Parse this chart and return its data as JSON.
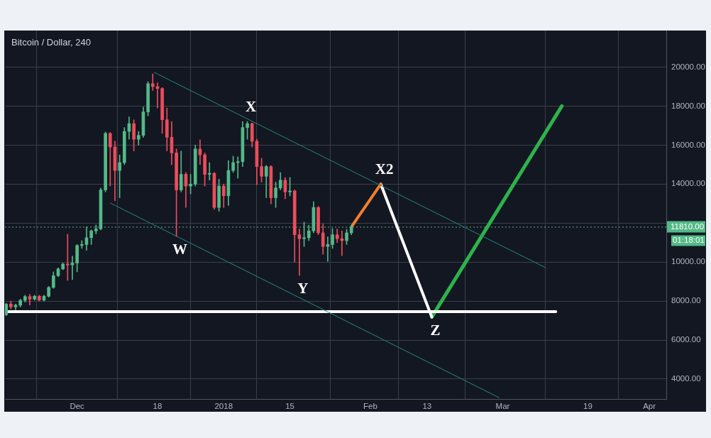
{
  "chart_data": {
    "type": "candlestick",
    "title": "Bitcoin / Dollar, 240",
    "x": [
      "2017-11-16",
      "2017-11-17",
      "2017-11-18",
      "2017-11-19",
      "2017-11-20",
      "2017-11-21",
      "2017-11-22",
      "2017-11-23",
      "2017-11-24",
      "2017-11-25",
      "2017-11-26",
      "2017-11-27",
      "2017-11-28",
      "2017-11-29",
      "2017-11-30",
      "2017-12-01",
      "2017-12-02",
      "2017-12-03",
      "2017-12-04",
      "2017-12-05",
      "2017-12-06",
      "2017-12-07",
      "2017-12-08",
      "2017-12-09",
      "2017-12-10",
      "2017-12-11",
      "2017-12-12",
      "2017-12-13",
      "2017-12-14",
      "2017-12-15",
      "2017-12-16",
      "2017-12-17",
      "2017-12-18",
      "2017-12-19",
      "2017-12-20",
      "2017-12-21",
      "2017-12-22",
      "2017-12-23",
      "2017-12-24",
      "2017-12-25",
      "2017-12-26",
      "2017-12-27",
      "2017-12-28",
      "2017-12-29",
      "2017-12-30",
      "2017-12-31",
      "2018-01-01",
      "2018-01-02",
      "2018-01-03",
      "2018-01-04",
      "2018-01-05",
      "2018-01-06",
      "2018-01-07",
      "2018-01-08",
      "2018-01-09",
      "2018-01-10",
      "2018-01-11",
      "2018-01-12",
      "2018-01-13",
      "2018-01-14",
      "2018-01-15",
      "2018-01-16",
      "2018-01-17",
      "2018-01-18",
      "2018-01-19",
      "2018-01-20",
      "2018-01-21",
      "2018-01-22",
      "2018-01-23",
      "2018-01-24",
      "2018-01-25",
      "2018-01-26",
      "2018-01-27",
      "2018-01-28"
    ],
    "ohlc": [
      [
        7300,
        7880,
        7250,
        7850
      ],
      [
        7850,
        8000,
        7600,
        7700
      ],
      [
        7700,
        7850,
        7550,
        7790
      ],
      [
        7790,
        8100,
        7700,
        8040
      ],
      [
        8040,
        8300,
        7950,
        8230
      ],
      [
        8230,
        8350,
        7800,
        8100
      ],
      [
        8100,
        8300,
        8050,
        8250
      ],
      [
        8250,
        8300,
        8000,
        8050
      ],
      [
        8050,
        8300,
        8000,
        8250
      ],
      [
        8250,
        8750,
        8200,
        8700
      ],
      [
        8700,
        9500,
        8650,
        9300
      ],
      [
        9300,
        9700,
        9250,
        9650
      ],
      [
        9650,
        9950,
        9600,
        9900
      ],
      [
        9900,
        11430,
        9060,
        9850
      ],
      [
        9850,
        10300,
        9100,
        9950
      ],
      [
        9950,
        10900,
        9500,
        10850
      ],
      [
        10850,
        11100,
        10700,
        10900
      ],
      [
        10900,
        11800,
        10600,
        11250
      ],
      [
        11250,
        11650,
        10900,
        11600
      ],
      [
        11600,
        11900,
        11450,
        11700
      ],
      [
        11700,
        13800,
        11650,
        13700
      ],
      [
        13700,
        16670,
        13600,
        16600
      ],
      [
        16600,
        16650,
        13900,
        15900
      ],
      [
        15900,
        16200,
        13140,
        14700
      ],
      [
        14700,
        15500,
        13300,
        15100
      ],
      [
        15100,
        16900,
        15000,
        16700
      ],
      [
        16700,
        17450,
        16300,
        17100
      ],
      [
        17100,
        17300,
        15700,
        16300
      ],
      [
        16300,
        16700,
        16000,
        16500
      ],
      [
        16500,
        17950,
        16400,
        17700
      ],
      [
        17700,
        19250,
        17500,
        19150
      ],
      [
        19150,
        19650,
        18800,
        19000
      ],
      [
        19000,
        19200,
        17900,
        18900
      ],
      [
        18900,
        18950,
        16600,
        17300
      ],
      [
        17300,
        17900,
        15700,
        16400
      ],
      [
        16400,
        17200,
        15000,
        15600
      ],
      [
        15600,
        15800,
        11320,
        13700
      ],
      [
        13700,
        15690,
        13600,
        14500
      ],
      [
        14500,
        14600,
        12800,
        13900
      ],
      [
        13900,
        14500,
        13500,
        14000
      ],
      [
        14000,
        16000,
        13900,
        15800
      ],
      [
        15800,
        16270,
        15000,
        15500
      ],
      [
        15500,
        15600,
        13900,
        14500
      ],
      [
        14500,
        15100,
        14200,
        14550
      ],
      [
        14550,
        14600,
        12700,
        12800
      ],
      [
        12800,
        14250,
        12600,
        13900
      ],
      [
        13900,
        14000,
        12800,
        13400
      ],
      [
        13400,
        15200,
        12900,
        14700
      ],
      [
        14700,
        15430,
        14600,
        15100
      ],
      [
        15100,
        15400,
        14300,
        15150
      ],
      [
        15150,
        17200,
        14900,
        16900
      ],
      [
        16900,
        17210,
        16300,
        17100
      ],
      [
        17100,
        17140,
        15900,
        16200
      ],
      [
        16200,
        16300,
        13970,
        14900
      ],
      [
        14900,
        15320,
        14100,
        14400
      ],
      [
        14400,
        14960,
        13300,
        14900
      ],
      [
        14900,
        14950,
        12990,
        13300
      ],
      [
        13300,
        14100,
        12800,
        13800
      ],
      [
        13800,
        14590,
        13700,
        14200
      ],
      [
        14200,
        14340,
        13250,
        13600
      ],
      [
        13600,
        14340,
        13400,
        13650
      ],
      [
        13650,
        13700,
        10000,
        11400
      ],
      [
        11400,
        11700,
        9320,
        11200
      ],
      [
        11200,
        12050,
        10800,
        11250
      ],
      [
        11250,
        11900,
        11100,
        11600
      ],
      [
        11600,
        13100,
        11500,
        12800
      ],
      [
        12800,
        12850,
        11400,
        11500
      ],
      [
        11500,
        11950,
        10400,
        10800
      ],
      [
        10800,
        11300,
        10040,
        10900
      ],
      [
        10900,
        11720,
        10700,
        11400
      ],
      [
        11400,
        11700,
        11000,
        11200
      ],
      [
        11200,
        11600,
        10330,
        11100
      ],
      [
        11100,
        11680,
        10900,
        11500
      ],
      [
        11500,
        11900,
        11400,
        11810
      ]
    ],
    "colors": [
      "#53b987",
      "#eb4d5c",
      "#53b987",
      "#53b987",
      "#53b987",
      "#eb4d5c",
      "#53b987",
      "#eb4d5c",
      "#53b987",
      "#53b987",
      "#53b987",
      "#53b987",
      "#53b987",
      "#eb4d5c",
      "#53b987",
      "#53b987",
      "#53b987",
      "#53b987",
      "#53b987",
      "#53b987",
      "#53b987",
      "#53b987",
      "#eb4d5c",
      "#eb4d5c",
      "#53b987",
      "#53b987",
      "#53b987",
      "#eb4d5c",
      "#53b987",
      "#53b987",
      "#53b987",
      "#eb4d5c",
      "#eb4d5c",
      "#eb4d5c",
      "#eb4d5c",
      "#eb4d5c",
      "#eb4d5c",
      "#53b987",
      "#eb4d5c",
      "#53b987",
      "#53b987",
      "#eb4d5c",
      "#eb4d5c",
      "#53b987",
      "#eb4d5c",
      "#53b987",
      "#eb4d5c",
      "#53b987",
      "#53b987",
      "#53b987",
      "#53b987",
      "#53b987",
      "#eb4d5c",
      "#eb4d5c",
      "#eb4d5c",
      "#53b987",
      "#eb4d5c",
      "#53b987",
      "#53b987",
      "#eb4d5c",
      "#53b987",
      "#eb4d5c",
      "#eb4d5c",
      "#53b987",
      "#53b987",
      "#53b987",
      "#eb4d5c",
      "#eb4d5c",
      "#53b987",
      "#53b987",
      "#eb4d5c",
      "#eb4d5c",
      "#53b987",
      "#53b987"
    ],
    "series": [
      {
        "type": "line",
        "x": [
          "2017-12-17T07:00",
          "2018-03-10"
        ],
        "values": [
          19730,
          9720
        ],
        "color": "#1f8a7c"
      },
      {
        "type": "line",
        "x": [
          "2017-12-08",
          "2018-02-28T05:00"
        ],
        "values": [
          13030,
          3050
        ],
        "color": "#1f8a7c"
      },
      {
        "type": "line",
        "x": [
          "2017-11-16",
          "2018-03-12T05:00"
        ],
        "values": [
          7460,
          7460
        ],
        "color": "#ffffff"
      },
      {
        "type": "line",
        "x": [
          "2018-01-28T03:00",
          "2018-02-03T05:00"
        ],
        "values": [
          11850,
          14000
        ],
        "color": "#f57f2c"
      },
      {
        "type": "line",
        "x": [
          "2018-02-03T05:00",
          "2018-02-14"
        ],
        "values": [
          14000,
          7180
        ],
        "color": "#ffffff"
      },
      {
        "type": "line",
        "x": [
          "2018-02-14",
          "2018-03-13T12:00"
        ],
        "values": [
          7180,
          18000
        ],
        "color": "#2db34a"
      }
    ],
    "xlim": [
      "2017-11-15T18:00",
      "2018-04-04T14:00"
    ],
    "xticks": [
      {
        "value": "2017-12-01",
        "label": "Dec"
      },
      {
        "value": "2017-12-18",
        "label": "18"
      },
      {
        "value": "2018-01-01",
        "label": "2018"
      },
      {
        "value": "2018-01-15",
        "label": "15"
      },
      {
        "value": "2018-02-01",
        "label": "Feb"
      },
      {
        "value": "2018-02-13",
        "label": "13"
      },
      {
        "value": "2018-03-01",
        "label": "Mar"
      },
      {
        "value": "2018-03-19",
        "label": "19"
      },
      {
        "value": "2018-04-01",
        "label": "Apr"
      }
    ],
    "ylim": [
      2980,
      21875
    ],
    "yticks": [
      {
        "value": 4000,
        "label": "4000.00"
      },
      {
        "value": 6000,
        "label": "6000.00"
      },
      {
        "value": 8000,
        "label": "8000.00"
      },
      {
        "value": 10000,
        "label": "10000.00"
      },
      {
        "value": 12000,
        "label": null
      },
      {
        "value": 14000,
        "label": "14000.00"
      },
      {
        "value": 16000,
        "label": "16000.00"
      },
      {
        "value": 18000,
        "label": "18000.00"
      },
      {
        "value": 20000,
        "label": "20000.00"
      }
    ],
    "grid": true,
    "ref_lines": [
      {
        "axis": "y",
        "value": 11810,
        "label": "11810.00",
        "color": "#53b987",
        "line_style": "dotted"
      }
    ],
    "annotations": [
      {
        "text": "W",
        "x": "2017-12-22",
        "y": 11320
      },
      {
        "text": "X",
        "x": "2018-01-06",
        "y": 17210
      },
      {
        "text": "Y",
        "x": "2018-01-17",
        "y": 9320
      },
      {
        "text": "X2",
        "x": "2018-02-03T05:00",
        "y": 14000
      },
      {
        "text": "Z",
        "x": "2018-02-14",
        "y": 7180
      },
      "01:18:01"
    ]
  }
}
